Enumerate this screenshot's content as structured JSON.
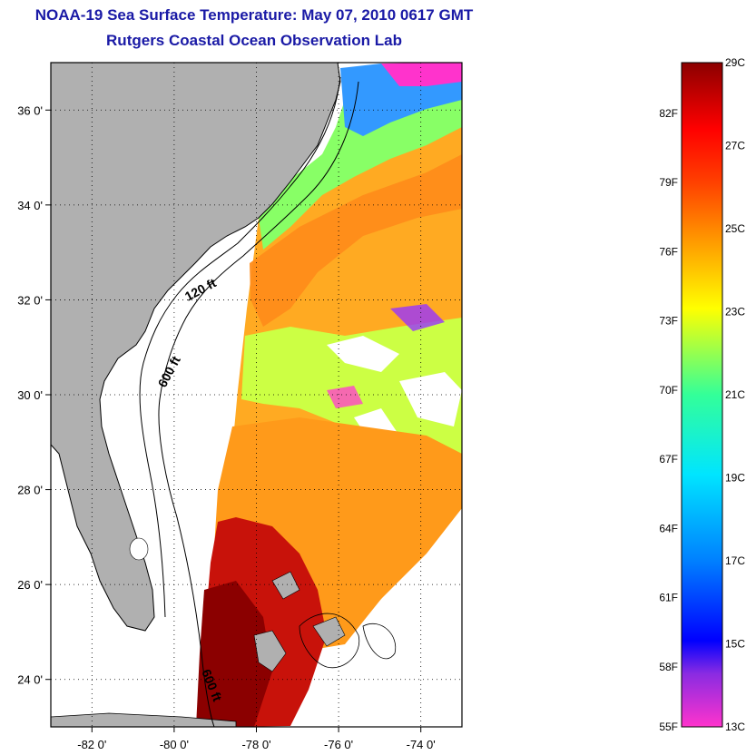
{
  "title": {
    "line1": "NOAA-19 Sea Surface Temperature:  May 07, 2010 0617 GMT",
    "line2": "Rutgers Coastal Ocean Observation Lab"
  },
  "map": {
    "lat_range": [
      23,
      37
    ],
    "lon_range": [
      -83,
      -73
    ],
    "lat_ticks": [
      {
        "value": 24,
        "label": "24 0'"
      },
      {
        "value": 26,
        "label": "26 0'"
      },
      {
        "value": 28,
        "label": "28 0'"
      },
      {
        "value": 30,
        "label": "30 0'"
      },
      {
        "value": 32,
        "label": "32 0'"
      },
      {
        "value": 34,
        "label": "34 0'"
      },
      {
        "value": 36,
        "label": "36 0'"
      }
    ],
    "lon_ticks": [
      {
        "value": -82,
        "label": "-82 0'"
      },
      {
        "value": -80,
        "label": "-80 0'"
      },
      {
        "value": -78,
        "label": "-78 0'"
      },
      {
        "value": -76,
        "label": "-76 0'"
      },
      {
        "value": -74,
        "label": "-74 0'"
      }
    ],
    "grid": "dotted",
    "land_color": "#b0b0b0",
    "contour_labels": [
      {
        "text": "120 ft",
        "lon": -79.6,
        "lat": 32.3
      },
      {
        "text": "600 ft",
        "lon": -80.2,
        "lat": 30.6
      },
      {
        "text": "600 ft",
        "lon": -78.9,
        "lat": 23.7
      }
    ]
  },
  "colorbar": {
    "celsius_labels": [
      "29C",
      "27C",
      "25C",
      "23C",
      "21C",
      "19C",
      "17C",
      "15C",
      "13C"
    ],
    "fahrenheit_labels": [
      "82F",
      "79F",
      "76F",
      "73F",
      "70F",
      "67F",
      "64F",
      "61F",
      "58F",
      "55F"
    ],
    "c_range": [
      13,
      29
    ],
    "colors": [
      "#ff33cc",
      "#8a2be2",
      "#0000ff",
      "#0080ff",
      "#00e5ff",
      "#33ff99",
      "#ffff00",
      "#ffa500",
      "#ff4000",
      "#ff0000",
      "#8b0000"
    ]
  }
}
